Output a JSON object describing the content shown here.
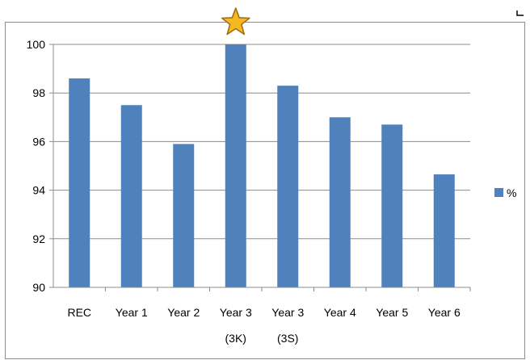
{
  "chart_data": {
    "type": "bar",
    "categories": [
      [
        "REC"
      ],
      [
        "Year 1"
      ],
      [
        "Year 2"
      ],
      [
        "Year 3",
        "(3K)"
      ],
      [
        "Year 3",
        "(3S)"
      ],
      [
        "Year 4"
      ],
      [
        "Year 5"
      ],
      [
        "Year 6"
      ]
    ],
    "series": [
      {
        "name": "%",
        "values": [
          98.6,
          97.5,
          95.9,
          100,
          98.3,
          97.0,
          96.7,
          94.65
        ],
        "color": "#4f81bd"
      }
    ],
    "ylim": [
      90,
      100
    ],
    "yticks": [
      90,
      92,
      94,
      96,
      98,
      100
    ],
    "grid": true,
    "legend": "right",
    "highlight": {
      "category_index": 3,
      "icon": "star-icon",
      "color": "#f5b722"
    }
  }
}
